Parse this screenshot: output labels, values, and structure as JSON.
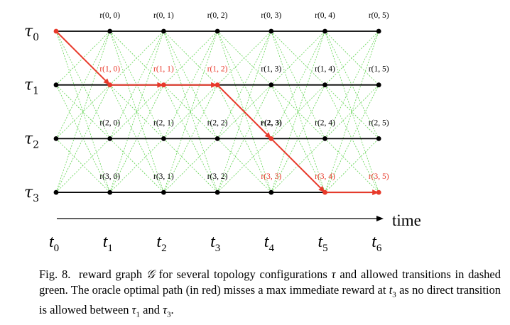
{
  "figure": {
    "rows": [
      {
        "label": "τ",
        "sub": "0"
      },
      {
        "label": "τ",
        "sub": "1"
      },
      {
        "label": "τ",
        "sub": "2"
      },
      {
        "label": "τ",
        "sub": "3"
      }
    ],
    "columns": [
      {
        "label": "t",
        "sub": "0"
      },
      {
        "label": "t",
        "sub": "1"
      },
      {
        "label": "t",
        "sub": "2"
      },
      {
        "label": "t",
        "sub": "3"
      },
      {
        "label": "t",
        "sub": "4"
      },
      {
        "label": "t",
        "sub": "5"
      },
      {
        "label": "t",
        "sub": "6"
      }
    ],
    "time_label": "time",
    "reward_labels": [
      [
        "r(0, 0)",
        "r(0, 1)",
        "r(0, 2)",
        "r(0, 3)",
        "r(0, 4)",
        "r(0, 5)"
      ],
      [
        "r(1, 0)",
        "r(1, 1)",
        "r(1, 2)",
        "r(1, 3)",
        "r(1, 4)",
        "r(1, 5)"
      ],
      [
        "r(2, 0)",
        "r(2, 1)",
        "r(2, 2)",
        "r(2, 3)",
        "r(2, 4)",
        "r(2, 5)"
      ],
      [
        "r(3, 0)",
        "r(3, 1)",
        "r(3, 2)",
        "r(3, 3)",
        "r(3, 4)",
        "r(3, 5)"
      ]
    ],
    "highlighted_labels": [
      [
        1,
        0
      ],
      [
        1,
        1
      ],
      [
        1,
        2
      ],
      [
        3,
        3
      ],
      [
        3,
        4
      ],
      [
        3,
        5
      ]
    ],
    "bold_labels": [
      [
        2,
        3
      ]
    ],
    "optimal_path": [
      [
        0,
        0
      ],
      [
        1,
        1
      ],
      [
        1,
        2
      ],
      [
        1,
        3
      ],
      [
        2,
        4
      ],
      [
        3,
        5
      ],
      [
        3,
        6
      ]
    ],
    "colors": {
      "path": "#e8392a",
      "transitions": "#5ad24a",
      "edge": "#000000",
      "node": "#000000"
    }
  },
  "caption": {
    "fig_num": "Fig. 8.",
    "part1": "reward graph ",
    "graph_symbol": "𝒢",
    "part2": " for several topology configurations ",
    "tau": "τ",
    "part3": " and allowed transitions in dashed green. The oracle optimal path (in red) misses a max immediate reward at ",
    "t3": "t",
    "t3_sub": "3",
    "part4": " as no direct transition is allowed between ",
    "tau1": "τ",
    "tau1_sub": "1",
    "part5": " and ",
    "tau3": "τ",
    "tau3_sub": "3",
    "part6": "."
  }
}
